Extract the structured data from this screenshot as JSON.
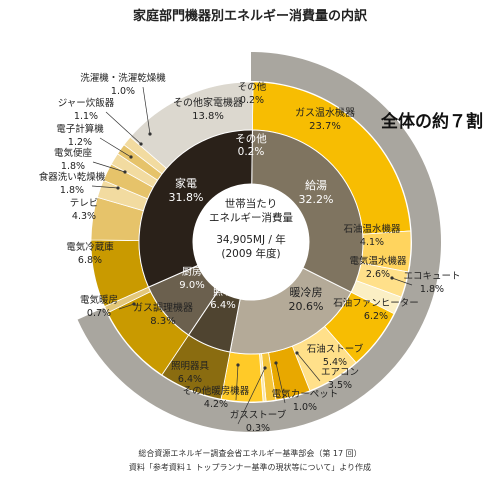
{
  "chart_data": {
    "type": "pie",
    "title": "家庭部門機器別エネルギー消費量の内訳",
    "center": {
      "line1": "世帯当たり",
      "line2": "エネルギー消費量",
      "line3": "34,905MJ / 年",
      "line4": "(2009 年度)"
    },
    "callout": "全体の約７割",
    "inner_ring": [
      {
        "name": "その他",
        "value": 0.2,
        "label": "0.2%",
        "color": "#2a2119"
      },
      {
        "name": "給湯",
        "value": 32.2,
        "label": "32.2%",
        "color": "#7f7460"
      },
      {
        "name": "暖冷房",
        "value": 20.6,
        "label": "20.6%",
        "color": "#b4aa98"
      },
      {
        "name": "照明",
        "value": 6.4,
        "label": "6.4%",
        "color": "#4f4430"
      },
      {
        "name": "厨房",
        "value": 9.0,
        "label": "9.0%",
        "color": "#6b604e"
      },
      {
        "name": "家電",
        "value": 31.8,
        "label": "31.8%",
        "color": "#2a2119"
      }
    ],
    "outer_ring": [
      {
        "name": "その他",
        "value": 0.2,
        "label": "0.2%",
        "color": "#b9b3a8"
      },
      {
        "name": "ガス温水機器",
        "value": 23.7,
        "label": "23.7%",
        "color": "#f7bd02"
      },
      {
        "name": "石油温水機器",
        "value": 4.1,
        "label": "4.1%",
        "color": "#ffd45e"
      },
      {
        "name": "電気温水機器",
        "value": 2.6,
        "label": "2.6%",
        "color": "#ffe08a"
      },
      {
        "name": "エコキュート",
        "value": 1.8,
        "label": "1.8%",
        "color": "#fbefc4"
      },
      {
        "name": "石油ファンヒーター",
        "value": 6.2,
        "label": "6.2%",
        "color": "#f7bd02"
      },
      {
        "name": "石油ストーブ",
        "value": 5.4,
        "label": "5.4%",
        "color": "#ffe08a"
      },
      {
        "name": "エアコン",
        "value": 3.5,
        "label": "3.5%",
        "color": "#e8a800"
      },
      {
        "name": "電気カーペット",
        "value": 1.0,
        "label": "1.0%",
        "color": "#f4c43a"
      },
      {
        "name": "ガスストーブ",
        "value": 0.3,
        "label": "0.3%",
        "color": "#fbe7a6"
      },
      {
        "name": "その他暖房機器",
        "value": 4.2,
        "label": "4.2%",
        "color": "#ffca28"
      },
      {
        "name": "照明器具",
        "value": 6.4,
        "label": "6.4%",
        "color": "#8a6c10"
      },
      {
        "name": "ガス調理機器",
        "value": 8.3,
        "label": "8.3%",
        "color": "#c99a00"
      },
      {
        "name": "電気暖房",
        "value": 0.7,
        "label": "0.7%",
        "color": "#e3c77a"
      },
      {
        "name": "電気冷蔵庫",
        "value": 6.8,
        "label": "6.8%",
        "color": "#c99a00"
      },
      {
        "name": "テレビ",
        "value": 4.3,
        "label": "4.3%",
        "color": "#e6c36a"
      },
      {
        "name": "食器洗い乾燥機",
        "value": 1.8,
        "label": "1.8%",
        "color": "#f2dba0"
      },
      {
        "name": "電気便座",
        "value": 1.8,
        "label": "1.8%",
        "color": "#e6c36a"
      },
      {
        "name": "電子計算機",
        "value": 1.2,
        "label": "1.2%",
        "color": "#f2dba0"
      },
      {
        "name": "ジャー炊飯器",
        "value": 1.1,
        "label": "1.1%",
        "color": "#e6c36a"
      },
      {
        "name": "洗濯機・洗濯乾燥機",
        "value": 1.0,
        "label": "1.0%",
        "color": "#f2dba0"
      },
      {
        "name": "その他家電機器",
        "value": 13.8,
        "label": "13.8%",
        "color": "#dcd8cf"
      }
    ],
    "highlight_band": {
      "from_value": 0,
      "to_value": 68.3,
      "color": "#a9a69f"
    },
    "source_line1": "総合資源エネルギー調査会省エネルギー基準部会（第 17 回）",
    "source_line2": "資料「参考資料１ トップランナー基準の現状等について」より作成"
  }
}
